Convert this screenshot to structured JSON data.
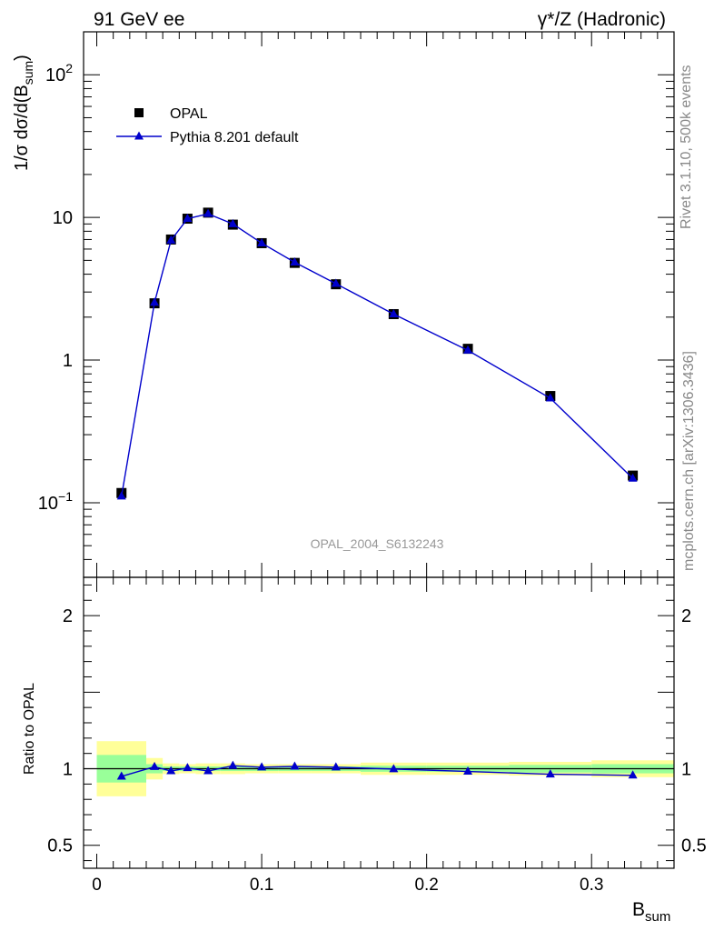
{
  "header": {
    "left": "91 GeV ee",
    "right": "γ*/Z (Hadronic)"
  },
  "side": {
    "rivet": "Rivet 3.1.10,  500k events",
    "mcplots": "mcplots.cern.ch [arXiv:1306.3436]"
  },
  "watermark": "OPAL_2004_S6132243",
  "chart_data": {
    "type": "scatter",
    "x_axis": {
      "label": "B",
      "label_sub": "sum",
      "lim": [
        -0.008,
        0.35
      ],
      "ticks": [
        0,
        0.1,
        0.2,
        0.3
      ],
      "tick_labels": [
        "0",
        "0.1",
        "0.2",
        "0.3"
      ]
    },
    "main_panel": {
      "yscale": "log",
      "ylim": [
        0.03,
        200
      ],
      "ylabel": "1/σ dσ/d(B",
      "ylabel_sub": "sum",
      "ylabel_end": ")",
      "y_tick_labels": [
        {
          "value": 100,
          "base": "10",
          "exp": "2"
        },
        {
          "value": 10,
          "base": "10",
          "exp": ""
        },
        {
          "value": 1,
          "base": "1",
          "exp": ""
        },
        {
          "value": 0.1,
          "base": "10",
          "exp": "−1"
        }
      ]
    },
    "legend": {
      "placement": "top-left",
      "entries": [
        "OPAL",
        "Pythia 8.201 default"
      ]
    },
    "series": [
      {
        "name": "OPAL",
        "marker": "square",
        "color": "#000000",
        "x": [
          0.015,
          0.035,
          0.045,
          0.055,
          0.0675,
          0.0825,
          0.1,
          0.12,
          0.145,
          0.18,
          0.225,
          0.275,
          0.325
        ],
        "y": [
          0.117,
          2.5,
          7.0,
          9.8,
          10.8,
          8.9,
          6.6,
          4.8,
          3.4,
          2.1,
          1.2,
          0.56,
          0.155
        ]
      },
      {
        "name": "Pythia 8.201 default",
        "marker": "triangle",
        "color": "#0000cc",
        "x": [
          0.015,
          0.035,
          0.045,
          0.055,
          0.0675,
          0.0825,
          0.1,
          0.12,
          0.145,
          0.18,
          0.225,
          0.275,
          0.325
        ],
        "y": [
          0.111,
          2.53,
          6.9,
          9.8,
          10.6,
          9.0,
          6.6,
          4.85,
          3.43,
          2.1,
          1.17,
          0.54,
          0.148
        ]
      }
    ],
    "ratio_panel": {
      "ylabel": "Ratio to OPAL",
      "ylim": [
        0.35,
        2.25
      ],
      "y_ticks": [
        0.5,
        1,
        2
      ],
      "y_tick_labels": [
        "0.5",
        "1",
        "2"
      ],
      "reference_line": 1,
      "ratio": {
        "x": [
          0.015,
          0.035,
          0.045,
          0.055,
          0.0675,
          0.0825,
          0.1,
          0.12,
          0.145,
          0.18,
          0.225,
          0.275,
          0.325
        ],
        "y": [
          0.95,
          1.013,
          0.985,
          1.005,
          0.985,
          1.02,
          1.01,
          1.015,
          1.01,
          0.998,
          0.982,
          0.964,
          0.957
        ]
      },
      "bands": [
        {
          "x0": 0.0,
          "x1": 0.03,
          "inner": [
            0.91,
            1.09
          ],
          "outer": [
            0.82,
            1.18
          ]
        },
        {
          "x0": 0.03,
          "x1": 0.04,
          "inner": [
            0.97,
            1.03
          ],
          "outer": [
            0.93,
            1.07
          ]
        },
        {
          "x0": 0.04,
          "x1": 0.05,
          "inner": [
            0.985,
            1.015
          ],
          "outer": [
            0.965,
            1.035
          ]
        },
        {
          "x0": 0.05,
          "x1": 0.06,
          "inner": [
            0.985,
            1.015
          ],
          "outer": [
            0.97,
            1.03
          ]
        },
        {
          "x0": 0.06,
          "x1": 0.075,
          "inner": [
            0.985,
            1.015
          ],
          "outer": [
            0.965,
            1.035
          ]
        },
        {
          "x0": 0.075,
          "x1": 0.09,
          "inner": [
            0.985,
            1.015
          ],
          "outer": [
            0.965,
            1.035
          ]
        },
        {
          "x0": 0.09,
          "x1": 0.11,
          "inner": [
            0.985,
            1.015
          ],
          "outer": [
            0.97,
            1.03
          ]
        },
        {
          "x0": 0.11,
          "x1": 0.13,
          "inner": [
            0.985,
            1.015
          ],
          "outer": [
            0.97,
            1.03
          ]
        },
        {
          "x0": 0.13,
          "x1": 0.16,
          "inner": [
            0.985,
            1.015
          ],
          "outer": [
            0.97,
            1.03
          ]
        },
        {
          "x0": 0.16,
          "x1": 0.2,
          "inner": [
            0.98,
            1.02
          ],
          "outer": [
            0.96,
            1.04
          ]
        },
        {
          "x0": 0.2,
          "x1": 0.25,
          "inner": [
            0.98,
            1.02
          ],
          "outer": [
            0.96,
            1.04
          ]
        },
        {
          "x0": 0.25,
          "x1": 0.3,
          "inner": [
            0.975,
            1.025
          ],
          "outer": [
            0.955,
            1.045
          ]
        },
        {
          "x0": 0.3,
          "x1": 0.35,
          "inner": [
            0.97,
            1.03
          ],
          "outer": [
            0.945,
            1.055
          ]
        }
      ]
    },
    "colors": {
      "inner_band": "#99ff99",
      "outer_band": "#ffff99",
      "mc": "#0000cc",
      "data": "#000000"
    }
  }
}
